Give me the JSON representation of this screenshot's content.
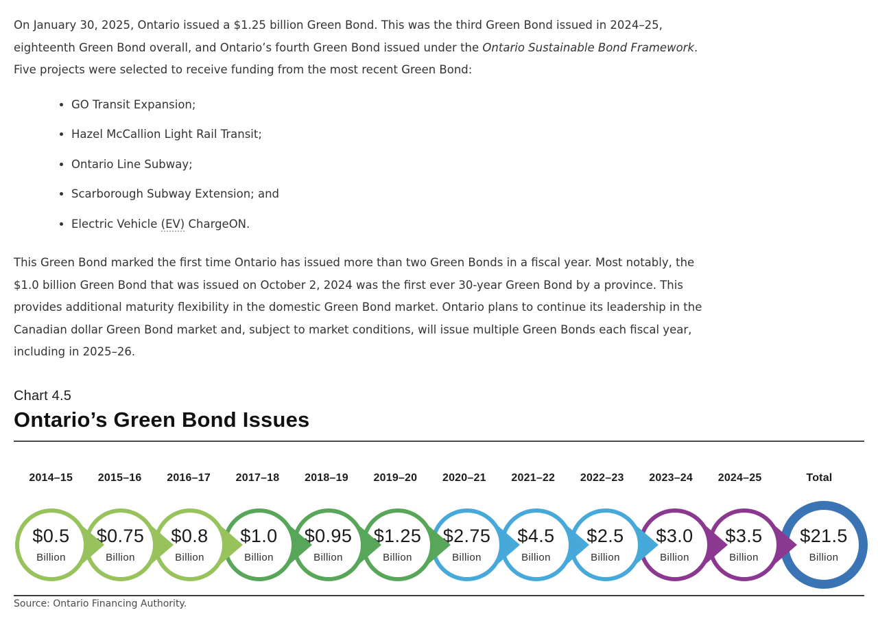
{
  "document": {
    "para1_runs": [
      {
        "text": "On January 30, 2025, Ontario issued a $1.25 billion Green Bond. This was the third Green Bond issued in 2024–25, eighteenth Green Bond overall, and Ontario’s fourth Green Bond issued under the "
      },
      {
        "text": "Ontario Sustainable Bond Framework",
        "italic": true
      },
      {
        "text": ". Five projects were selected to receive funding from the most recent Green Bond:"
      }
    ],
    "bullets": [
      [
        {
          "text": "GO Transit Expansion;"
        }
      ],
      [
        {
          "text": "Hazel McCallion Light Rail Transit;"
        }
      ],
      [
        {
          "text": "Ontario Line Subway;"
        }
      ],
      [
        {
          "text": "Scarborough Subway Extension; and"
        }
      ],
      [
        {
          "text": "Electric Vehicle "
        },
        {
          "text": "(EV)",
          "dotted": true
        },
        {
          "text": " ChargeON."
        }
      ]
    ],
    "para2": "This Green Bond marked the first time Ontario has issued more than two Green Bonds in a fiscal year. Most notably, the $1.0 billion Green Bond that was issued on October 2, 2024 was the first ever 30-year Green Bond by a province. This provides additional maturity flexibility in the domestic Green Bond market. Ontario plans to continue its leadership in the Canadian dollar Green Bond market and, subject to market conditions, will issue multiple Green Bonds each fiscal year, including in 2025–26."
  },
  "chart": {
    "label": "Chart 4.5",
    "title": "Ontario’s Green Bond Issues",
    "source": "Source: Ontario Financing Authority.",
    "nodes": [
      {
        "year": "2014–15",
        "amount": "$0.5",
        "unit": "Billion",
        "color": "#97c25c"
      },
      {
        "year": "2015–16",
        "amount": "$0.75",
        "unit": "Billion",
        "color": "#97c25c"
      },
      {
        "year": "2016–17",
        "amount": "$0.8",
        "unit": "Billion",
        "color": "#97c25c"
      },
      {
        "year": "2017–18",
        "amount": "$1.0",
        "unit": "Billion",
        "color": "#58a65a"
      },
      {
        "year": "2018–19",
        "amount": "$0.95",
        "unit": "Billion",
        "color": "#58a65a"
      },
      {
        "year": "2019–20",
        "amount": "$1.25",
        "unit": "Billion",
        "color": "#58a65a"
      },
      {
        "year": "2020–21",
        "amount": "$2.75",
        "unit": "Billion",
        "color": "#47a9d9"
      },
      {
        "year": "2021–22",
        "amount": "$4.5",
        "unit": "Billion",
        "color": "#47a9d9"
      },
      {
        "year": "2022–23",
        "amount": "$2.5",
        "unit": "Billion",
        "color": "#47a9d9"
      },
      {
        "year": "2023–24",
        "amount": "$3.0",
        "unit": "Billion",
        "color": "#8b3990"
      },
      {
        "year": "2024–25",
        "amount": "$3.5",
        "unit": "Billion",
        "color": "#8b3990"
      },
      {
        "year": "Total",
        "amount": "$21.5",
        "unit": "Billion",
        "color": "#3b74b5",
        "is_total": true
      }
    ]
  },
  "chart_data": {
    "type": "table",
    "chart_label": "Chart 4.5",
    "title": "Ontario’s Green Bond Issues",
    "unit": "CAD $ billions",
    "categories": [
      "2014–15",
      "2015–16",
      "2016–17",
      "2017–18",
      "2018–19",
      "2019–20",
      "2020–21",
      "2021–22",
      "2022–23",
      "2023–24",
      "2024–25",
      "Total"
    ],
    "values": [
      0.5,
      0.75,
      0.8,
      1.0,
      0.95,
      1.25,
      2.75,
      4.5,
      2.5,
      3.0,
      3.5,
      21.5
    ],
    "value_labels": [
      "$0.5 Billion",
      "$0.75 Billion",
      "$0.8 Billion",
      "$1.0 Billion",
      "$0.95 Billion",
      "$1.25 Billion",
      "$2.75 Billion",
      "$4.5 Billion",
      "$2.5 Billion",
      "$3.0 Billion",
      "$3.5 Billion",
      "$21.5 Billion"
    ],
    "series_colors": [
      "#97c25c",
      "#97c25c",
      "#97c25c",
      "#58a65a",
      "#58a65a",
      "#58a65a",
      "#47a9d9",
      "#47a9d9",
      "#47a9d9",
      "#8b3990",
      "#8b3990",
      "#3b74b5"
    ],
    "legend_position": "none",
    "grid": false,
    "source": "Source: Ontario Financing Authority."
  }
}
